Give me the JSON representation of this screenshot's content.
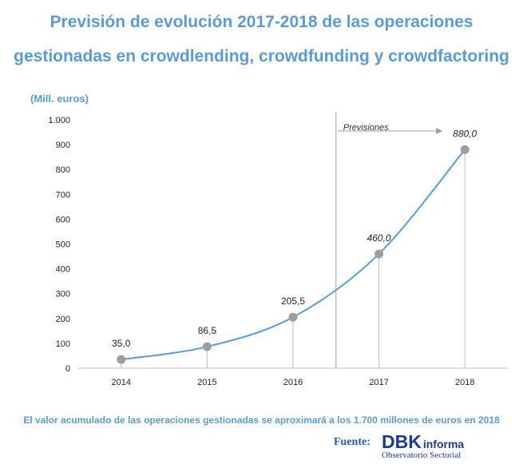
{
  "title_line1": "Previsión de evolución 2017-2018 de las operaciones",
  "title_line2": "gestionadas en crowdlending, crowdfunding y crowdfactoring",
  "unit_label": "(Mill. euros)",
  "chart_data": {
    "type": "line",
    "categories": [
      "2014",
      "2015",
      "2016",
      "2017",
      "2018"
    ],
    "values": [
      35.0,
      86.5,
      205.5,
      460.0,
      880.0
    ],
    "data_labels": [
      "35,0",
      "86,5",
      "205,5",
      "460,0",
      "880,0"
    ],
    "forecast_flags": [
      false,
      false,
      false,
      true,
      true
    ],
    "ylim": [
      0,
      1000
    ],
    "y_ticks": [
      0,
      100,
      200,
      300,
      400,
      500,
      600,
      700,
      800,
      900,
      1000
    ],
    "y_tick_labels": [
      "0",
      "100",
      "200",
      "300",
      "400",
      "500",
      "600",
      "700",
      "800",
      "900",
      "1.000"
    ],
    "ylabel": "(Mill. euros)",
    "xlabel": "",
    "grid": false,
    "annotation": "Previsiones",
    "line_color": "#5b9bd5",
    "marker_color": "#9e9e9e"
  },
  "footnote": "El valor acumulado de las operaciones gestionadas se aproximará a los 1.700 millones de euros en 2018",
  "source_label": "Fuente:",
  "logo": {
    "dbk": "DBK",
    "informa": "informa",
    "subtitle": "Observatorio Sectorial"
  }
}
